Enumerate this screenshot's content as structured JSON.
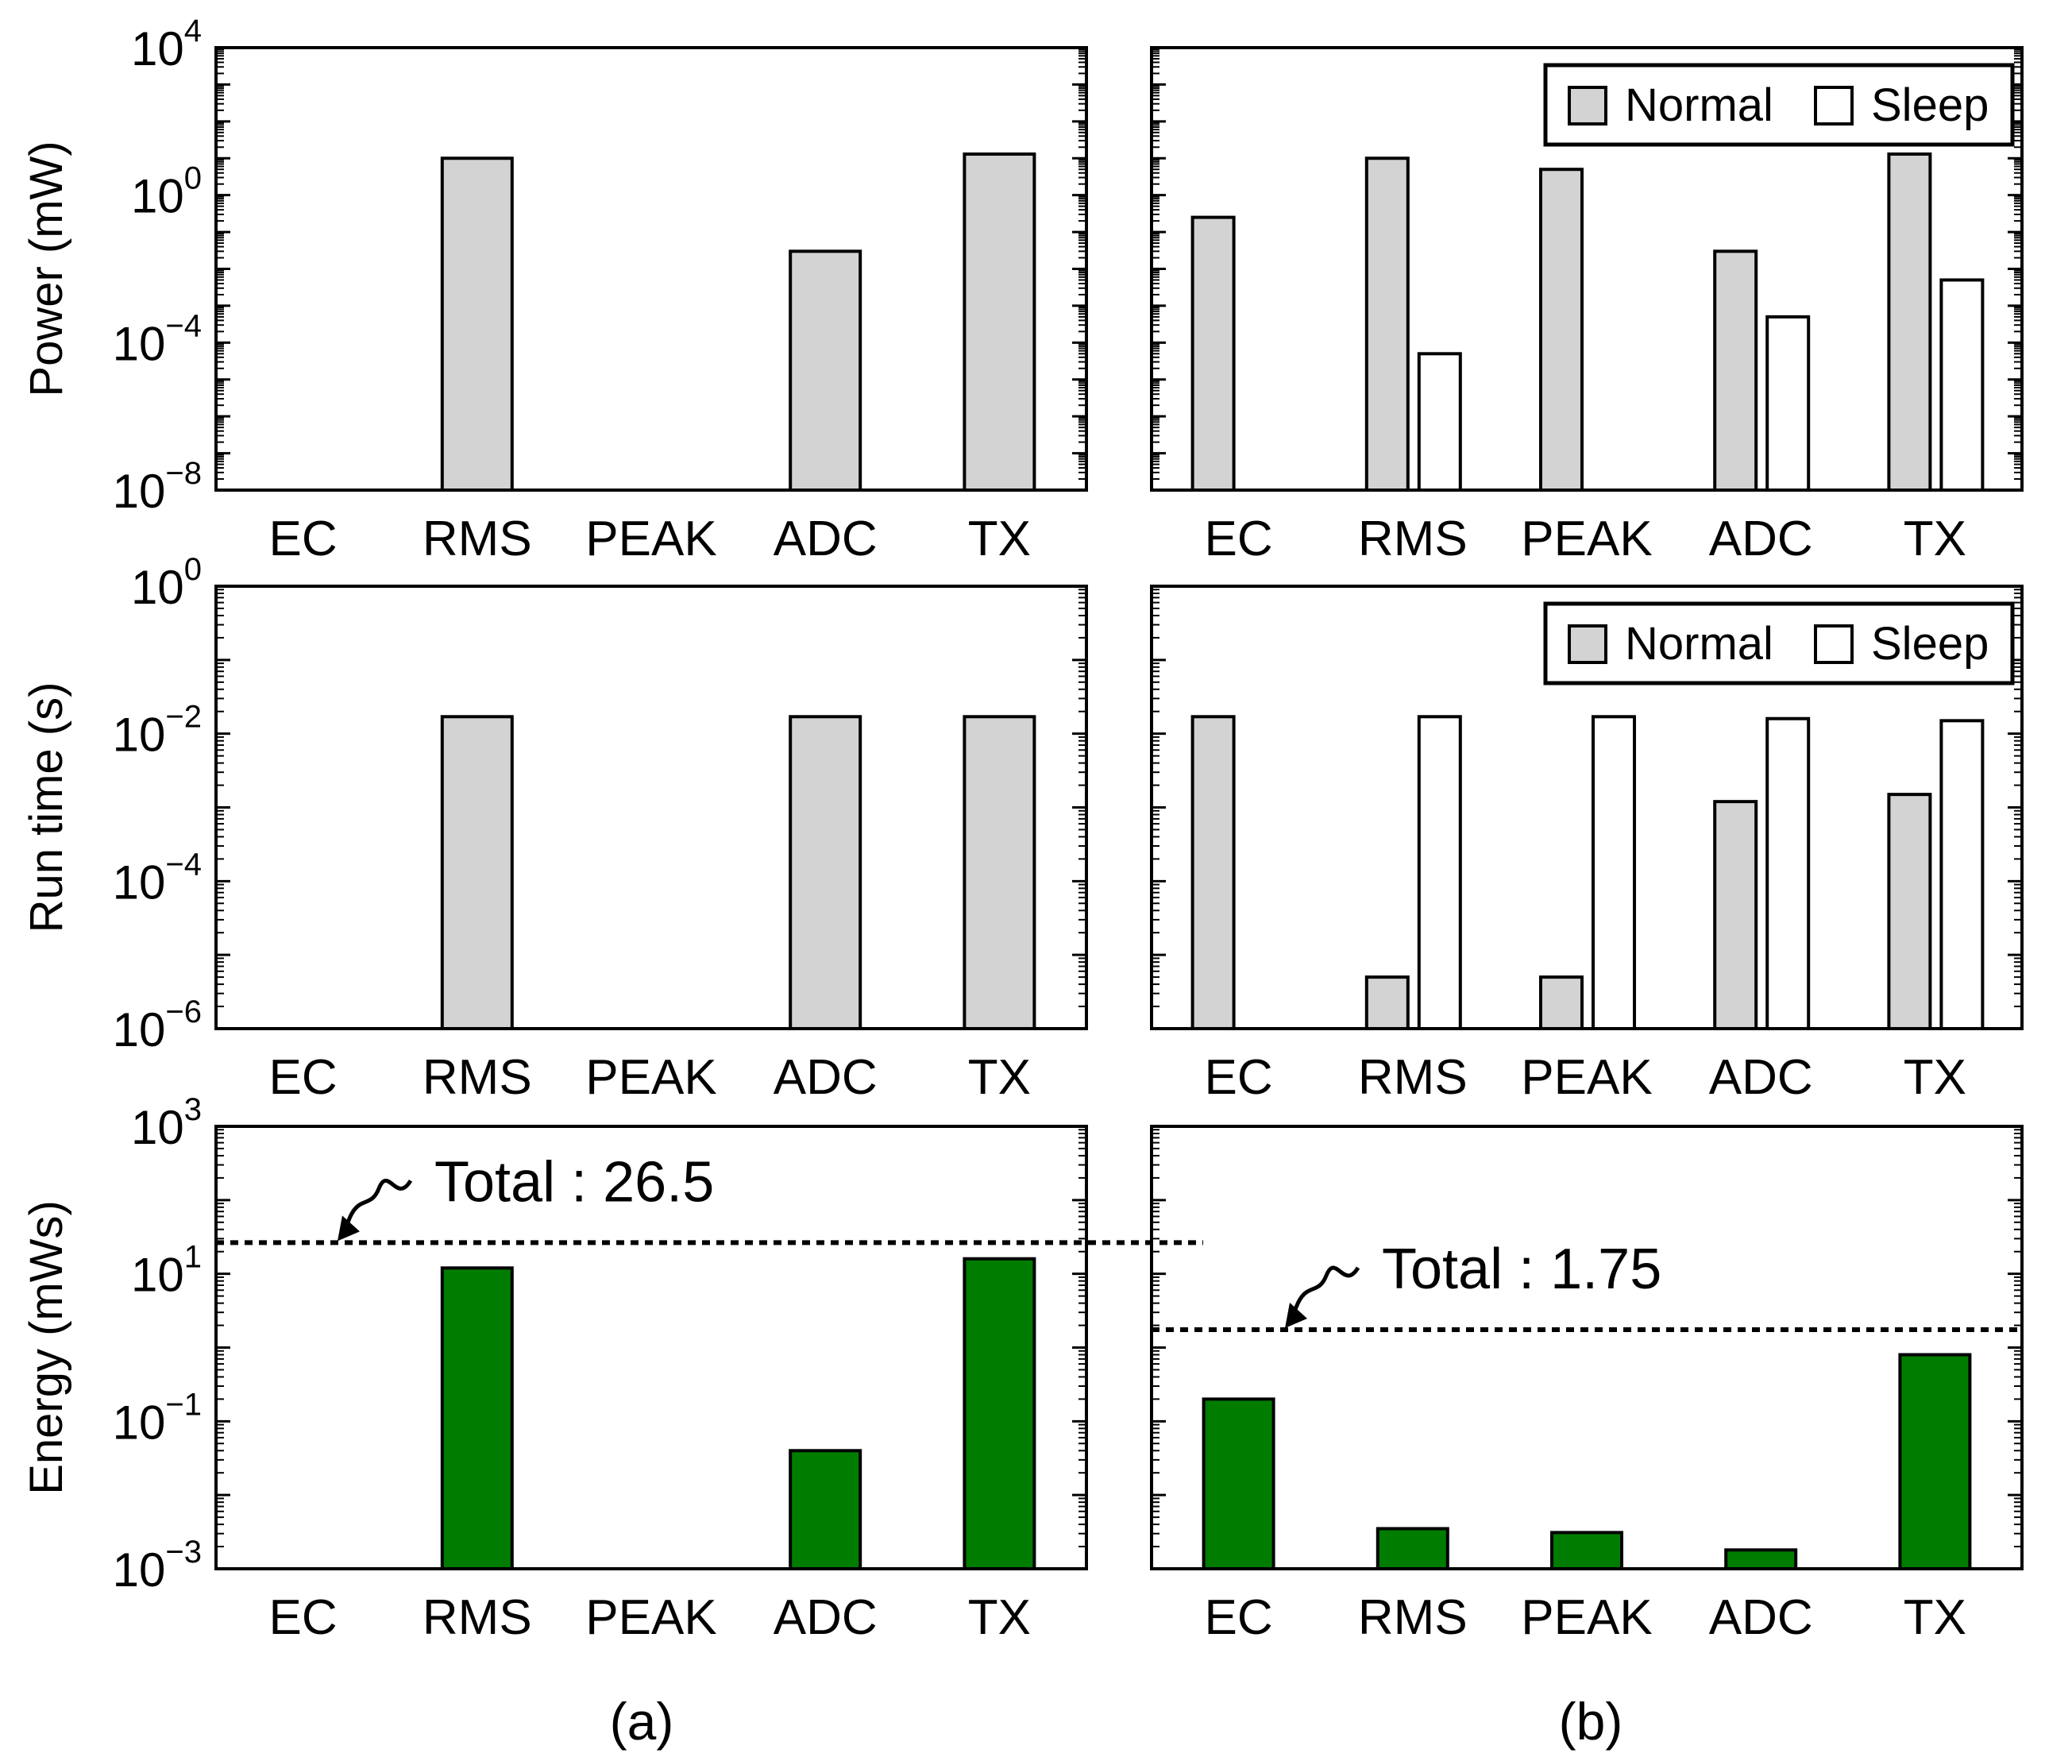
{
  "chart_data": [
    {
      "id": "power-normal",
      "type": "bar",
      "ylabel": "Power (mW)",
      "yscale": "log",
      "ylim_exp": [
        -8,
        4
      ],
      "yticks_exp": [
        -8,
        -4,
        0,
        4
      ],
      "categories": [
        "EC",
        "RMS",
        "PEAK",
        "ADC",
        "TX"
      ],
      "series": [
        {
          "name": "Normal",
          "color": "#d3d3d3",
          "values": [
            null,
            10,
            null,
            0.03,
            13
          ]
        }
      ]
    },
    {
      "id": "power-sleep",
      "type": "bar",
      "ylabel": "",
      "yscale": "log",
      "ylim_exp": [
        -8,
        4
      ],
      "yticks_exp": [],
      "categories": [
        "EC",
        "RMS",
        "PEAK",
        "ADC",
        "TX"
      ],
      "legend": {
        "placement": "top-right",
        "entries": [
          "Normal",
          "Sleep"
        ]
      },
      "series": [
        {
          "name": "Normal",
          "color": "#d3d3d3",
          "values": [
            0.25,
            10,
            5,
            0.03,
            13
          ]
        },
        {
          "name": "Sleep",
          "color": "#ffffff",
          "values": [
            null,
            5e-05,
            1e-08,
            0.0005,
            0.005
          ]
        }
      ]
    },
    {
      "id": "runtime-normal",
      "type": "bar",
      "ylabel": "Run time (s)",
      "yscale": "log",
      "ylim_exp": [
        -6,
        0
      ],
      "yticks_exp": [
        -6,
        -4,
        -2,
        0
      ],
      "tick_prefix": "10",
      "categories": [
        "EC",
        "RMS",
        "PEAK",
        "ADC",
        "TX"
      ],
      "series": [
        {
          "name": "Normal",
          "color": "#d3d3d3",
          "values": [
            null,
            0.017,
            null,
            0.017,
            0.017
          ]
        }
      ]
    },
    {
      "id": "runtime-sleep",
      "type": "bar",
      "ylabel": "",
      "yscale": "log",
      "ylim_exp": [
        -6,
        0
      ],
      "yticks_exp": [],
      "categories": [
        "EC",
        "RMS",
        "PEAK",
        "ADC",
        "TX"
      ],
      "legend": {
        "placement": "top-right",
        "entries": [
          "Normal",
          "Sleep"
        ]
      },
      "series": [
        {
          "name": "Normal",
          "color": "#d3d3d3",
          "values": [
            0.017,
            5e-06,
            5e-06,
            0.0012,
            0.0015
          ]
        },
        {
          "name": "Sleep",
          "color": "#ffffff",
          "values": [
            null,
            0.017,
            0.017,
            0.016,
            0.015
          ]
        }
      ]
    },
    {
      "id": "energy-normal",
      "type": "bar",
      "ylabel": "Energy (mWs)",
      "yscale": "log",
      "ylim_exp": [
        -3,
        3
      ],
      "yticks_exp": [
        -3,
        -1,
        1,
        3
      ],
      "categories": [
        "EC",
        "RMS",
        "PEAK",
        "ADC",
        "TX"
      ],
      "series": [
        {
          "name": "Energy",
          "color": "#007d00",
          "values": [
            null,
            12,
            null,
            0.04,
            16
          ]
        }
      ],
      "total": {
        "value": 26.5,
        "label": "Total : 26.5"
      }
    },
    {
      "id": "energy-sleep",
      "type": "bar",
      "ylabel": "",
      "yscale": "log",
      "ylim_exp": [
        -3,
        3
      ],
      "yticks_exp": [],
      "categories": [
        "EC",
        "RMS",
        "PEAK",
        "ADC",
        "TX"
      ],
      "series": [
        {
          "name": "Energy",
          "color": "#007d00",
          "values": [
            0.2,
            0.0035,
            0.0031,
            0.0018,
            0.8
          ]
        }
      ],
      "total": {
        "value": 1.75,
        "label": "Total : 1.75"
      }
    }
  ],
  "panel_tags": {
    "left": "(a)",
    "right": "(b)"
  },
  "tick_base": "10"
}
